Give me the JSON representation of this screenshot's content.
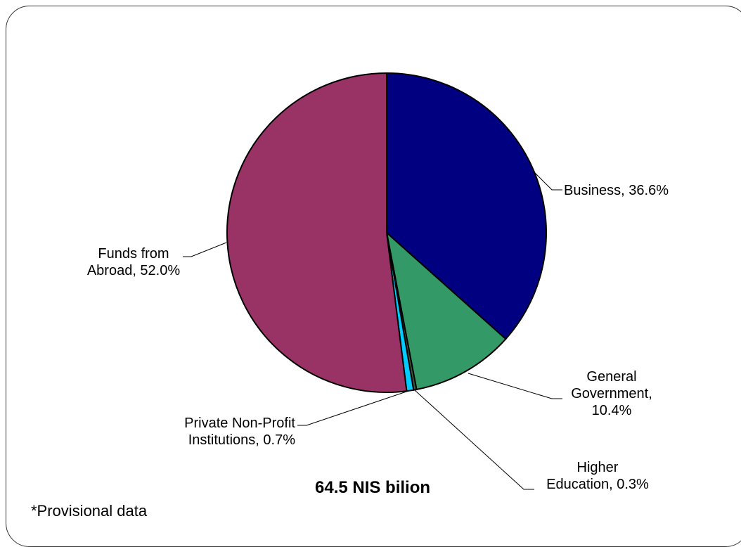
{
  "chart_data": {
    "type": "pie",
    "slices": [
      {
        "label_lines": [
          "Business, 36.6%"
        ],
        "category": "Business",
        "value": 36.6,
        "color": "#000080"
      },
      {
        "label_lines": [
          "General",
          "Government,",
          "10.4%"
        ],
        "category": "General Government",
        "value": 10.4,
        "color": "#339966"
      },
      {
        "label_lines": [
          "Higher",
          "Education, 0.3%"
        ],
        "category": "Higher Education",
        "value": 0.3,
        "color": "#3d5a3d"
      },
      {
        "label_lines": [
          "Private Non-Profit",
          "Institutions, 0.7%"
        ],
        "category": "Private Non-Profit Institutions",
        "value": 0.7,
        "color": "#00ccff"
      },
      {
        "label_lines": [
          "Funds from",
          "Abroad, 52.0%"
        ],
        "category": "Funds from Abroad",
        "value": 52.0,
        "color": "#993366"
      }
    ],
    "total_label": "64.5 NIS bilion",
    "footnote": "*Provisional data"
  }
}
